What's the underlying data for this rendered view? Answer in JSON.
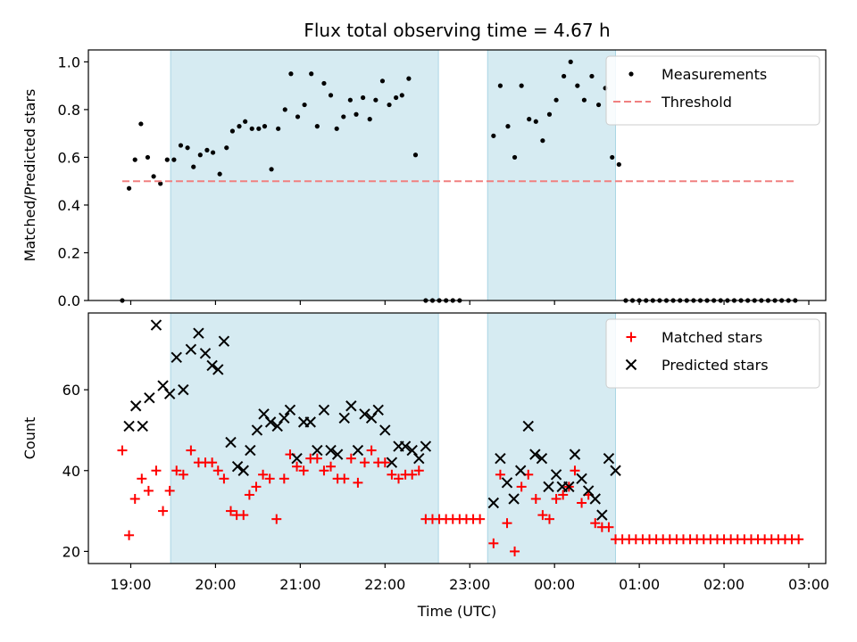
{
  "chart_data": [
    {
      "type": "scatter",
      "title": "Flux total observing time = 4.67 h",
      "ylabel": "Matched/Predicted stars",
      "xlabel": "",
      "x_unit": "hours since 19:00 UTC",
      "xlim": [
        -0.5,
        8.2
      ],
      "ylim": [
        0,
        1.05
      ],
      "yticks": [
        0.0,
        0.2,
        0.4,
        0.6,
        0.8,
        1.0
      ],
      "ytick_labels": [
        "0.0",
        "0.2",
        "0.4",
        "0.6",
        "0.8",
        "1.0"
      ],
      "shaded_spans": [
        [
          0.47,
          3.63
        ],
        [
          4.21,
          5.72
        ]
      ],
      "legend_position": "top-right",
      "series": [
        {
          "name": "Measurements",
          "marker": "dot",
          "color": "#000000",
          "points": [
            [
              -0.1,
              0.0
            ],
            [
              -0.02,
              0.47
            ],
            [
              0.05,
              0.59
            ],
            [
              0.12,
              0.74
            ],
            [
              0.2,
              0.6
            ],
            [
              0.27,
              0.52
            ],
            [
              0.35,
              0.49
            ],
            [
              0.43,
              0.59
            ],
            [
              0.51,
              0.59
            ],
            [
              0.59,
              0.65
            ],
            [
              0.67,
              0.64
            ],
            [
              0.74,
              0.56
            ],
            [
              0.82,
              0.61
            ],
            [
              0.9,
              0.63
            ],
            [
              0.97,
              0.62
            ],
            [
              1.05,
              0.53
            ],
            [
              1.13,
              0.64
            ],
            [
              1.2,
              0.71
            ],
            [
              1.28,
              0.73
            ],
            [
              1.35,
              0.75
            ],
            [
              1.43,
              0.72
            ],
            [
              1.51,
              0.72
            ],
            [
              1.58,
              0.73
            ],
            [
              1.66,
              0.55
            ],
            [
              1.74,
              0.72
            ],
            [
              1.82,
              0.8
            ],
            [
              1.89,
              0.95
            ],
            [
              1.97,
              0.77
            ],
            [
              2.05,
              0.82
            ],
            [
              2.13,
              0.95
            ],
            [
              2.2,
              0.73
            ],
            [
              2.28,
              0.91
            ],
            [
              2.36,
              0.86
            ],
            [
              2.43,
              0.72
            ],
            [
              2.51,
              0.77
            ],
            [
              2.59,
              0.84
            ],
            [
              2.66,
              0.78
            ],
            [
              2.74,
              0.85
            ],
            [
              2.82,
              0.76
            ],
            [
              2.89,
              0.84
            ],
            [
              2.97,
              0.92
            ],
            [
              3.05,
              0.82
            ],
            [
              3.13,
              0.85
            ],
            [
              3.2,
              0.86
            ],
            [
              3.28,
              0.93
            ],
            [
              3.36,
              0.61
            ],
            [
              3.48,
              0.0
            ],
            [
              3.56,
              0.0
            ],
            [
              3.64,
              0.0
            ],
            [
              3.72,
              0.0
            ],
            [
              3.8,
              0.0
            ],
            [
              3.88,
              0.0
            ],
            [
              4.28,
              0.69
            ],
            [
              4.36,
              0.9
            ],
            [
              4.45,
              0.73
            ],
            [
              4.53,
              0.6
            ],
            [
              4.61,
              0.9
            ],
            [
              4.7,
              0.76
            ],
            [
              4.78,
              0.75
            ],
            [
              4.86,
              0.67
            ],
            [
              4.94,
              0.78
            ],
            [
              5.02,
              0.84
            ],
            [
              5.11,
              0.94
            ],
            [
              5.19,
              1.0
            ],
            [
              5.27,
              0.9
            ],
            [
              5.35,
              0.84
            ],
            [
              5.44,
              0.94
            ],
            [
              5.52,
              0.82
            ],
            [
              5.6,
              0.89
            ],
            [
              5.68,
              0.6
            ],
            [
              5.76,
              0.57
            ],
            [
              5.84,
              0.0
            ],
            [
              5.92,
              0.0
            ],
            [
              6.0,
              0.0
            ],
            [
              6.08,
              0.0
            ],
            [
              6.16,
              0.0
            ],
            [
              6.24,
              0.0
            ],
            [
              6.32,
              0.0
            ],
            [
              6.4,
              0.0
            ],
            [
              6.48,
              0.0
            ],
            [
              6.56,
              0.0
            ],
            [
              6.64,
              0.0
            ],
            [
              6.72,
              0.0
            ],
            [
              6.8,
              0.0
            ],
            [
              6.88,
              0.0
            ],
            [
              6.96,
              0.0
            ],
            [
              7.04,
              0.0
            ],
            [
              7.12,
              0.0
            ],
            [
              7.2,
              0.0
            ],
            [
              7.28,
              0.0
            ],
            [
              7.36,
              0.0
            ],
            [
              7.44,
              0.0
            ],
            [
              7.52,
              0.0
            ],
            [
              7.6,
              0.0
            ],
            [
              7.68,
              0.0
            ],
            [
              7.76,
              0.0
            ],
            [
              7.84,
              0.0
            ]
          ]
        },
        {
          "name": "Threshold",
          "type": "line",
          "style": "dashed",
          "color": "#f08080",
          "points": [
            [
              -0.1,
              0.5
            ],
            [
              7.84,
              0.5
            ]
          ]
        }
      ]
    },
    {
      "type": "scatter",
      "title": "",
      "ylabel": "Count",
      "xlabel": "Time (UTC)",
      "x_unit": "hours since 19:00 UTC",
      "xlim": [
        -0.5,
        8.2
      ],
      "ylim": [
        17,
        79
      ],
      "yticks": [
        20,
        40,
        60
      ],
      "ytick_labels": [
        "20",
        "40",
        "60"
      ],
      "xticks": [
        0,
        1,
        2,
        3,
        4,
        5,
        6,
        7,
        8
      ],
      "xtick_labels": [
        "19:00",
        "20:00",
        "21:00",
        "22:00",
        "23:00",
        "00:00",
        "01:00",
        "02:00",
        "03:00"
      ],
      "shaded_spans": [
        [
          0.47,
          3.63
        ],
        [
          4.21,
          5.72
        ]
      ],
      "legend_position": "top-right",
      "series": [
        {
          "name": "Matched stars",
          "marker": "plus",
          "color": "#ff0000",
          "points": [
            [
              -0.1,
              45
            ],
            [
              -0.02,
              24
            ],
            [
              0.05,
              33
            ],
            [
              0.13,
              38
            ],
            [
              0.21,
              35
            ],
            [
              0.3,
              40
            ],
            [
              0.38,
              30
            ],
            [
              0.46,
              35
            ],
            [
              0.54,
              40
            ],
            [
              0.62,
              39
            ],
            [
              0.71,
              45
            ],
            [
              0.8,
              42
            ],
            [
              0.88,
              42
            ],
            [
              0.96,
              42
            ],
            [
              1.03,
              40
            ],
            [
              1.1,
              38
            ],
            [
              1.18,
              30
            ],
            [
              1.25,
              29
            ],
            [
              1.33,
              29
            ],
            [
              1.4,
              34
            ],
            [
              1.48,
              36
            ],
            [
              1.56,
              39
            ],
            [
              1.64,
              38
            ],
            [
              1.72,
              28
            ],
            [
              1.81,
              38
            ],
            [
              1.88,
              44
            ],
            [
              1.96,
              41
            ],
            [
              2.04,
              40
            ],
            [
              2.12,
              43
            ],
            [
              2.2,
              43
            ],
            [
              2.28,
              40
            ],
            [
              2.36,
              41
            ],
            [
              2.44,
              38
            ],
            [
              2.52,
              38
            ],
            [
              2.6,
              43
            ],
            [
              2.68,
              37
            ],
            [
              2.76,
              42
            ],
            [
              2.84,
              45
            ],
            [
              2.92,
              42
            ],
            [
              3.0,
              42
            ],
            [
              3.08,
              39
            ],
            [
              3.16,
              38
            ],
            [
              3.24,
              39
            ],
            [
              3.32,
              39
            ],
            [
              3.4,
              40
            ],
            [
              3.48,
              28
            ],
            [
              3.56,
              28
            ],
            [
              3.64,
              28
            ],
            [
              3.72,
              28
            ],
            [
              3.8,
              28
            ],
            [
              3.88,
              28
            ],
            [
              3.96,
              28
            ],
            [
              4.04,
              28
            ],
            [
              4.12,
              28
            ],
            [
              4.28,
              22
            ],
            [
              4.36,
              39
            ],
            [
              4.44,
              27
            ],
            [
              4.53,
              20
            ],
            [
              4.61,
              36
            ],
            [
              4.69,
              39
            ],
            [
              4.78,
              33
            ],
            [
              4.86,
              29
            ],
            [
              4.94,
              28
            ],
            [
              5.02,
              33
            ],
            [
              5.1,
              34
            ],
            [
              5.17,
              36
            ],
            [
              5.24,
              40
            ],
            [
              5.32,
              32
            ],
            [
              5.4,
              34
            ],
            [
              5.48,
              27
            ],
            [
              5.56,
              26
            ],
            [
              5.64,
              26
            ],
            [
              5.72,
              23
            ],
            [
              5.8,
              23
            ],
            [
              5.88,
              23
            ],
            [
              5.96,
              23
            ],
            [
              6.04,
              23
            ],
            [
              6.12,
              23
            ],
            [
              6.2,
              23
            ],
            [
              6.28,
              23
            ],
            [
              6.36,
              23
            ],
            [
              6.44,
              23
            ],
            [
              6.52,
              23
            ],
            [
              6.6,
              23
            ],
            [
              6.68,
              23
            ],
            [
              6.76,
              23
            ],
            [
              6.84,
              23
            ],
            [
              6.92,
              23
            ],
            [
              7.0,
              23
            ],
            [
              7.08,
              23
            ],
            [
              7.16,
              23
            ],
            [
              7.24,
              23
            ],
            [
              7.32,
              23
            ],
            [
              7.4,
              23
            ],
            [
              7.48,
              23
            ],
            [
              7.56,
              23
            ],
            [
              7.64,
              23
            ],
            [
              7.72,
              23
            ],
            [
              7.8,
              23
            ],
            [
              7.88,
              23
            ]
          ]
        },
        {
          "name": "Predicted stars",
          "marker": "x",
          "color": "#000000",
          "points": [
            [
              -0.02,
              51
            ],
            [
              0.06,
              56
            ],
            [
              0.14,
              51
            ],
            [
              0.22,
              58
            ],
            [
              0.3,
              76
            ],
            [
              0.38,
              61
            ],
            [
              0.46,
              59
            ],
            [
              0.54,
              68
            ],
            [
              0.62,
              60
            ],
            [
              0.71,
              70
            ],
            [
              0.8,
              74
            ],
            [
              0.88,
              69
            ],
            [
              0.96,
              66
            ],
            [
              1.03,
              65
            ],
            [
              1.1,
              72
            ],
            [
              1.18,
              47
            ],
            [
              1.26,
              41
            ],
            [
              1.33,
              40
            ],
            [
              1.41,
              45
            ],
            [
              1.49,
              50
            ],
            [
              1.57,
              54
            ],
            [
              1.65,
              52
            ],
            [
              1.73,
              51
            ],
            [
              1.81,
              53
            ],
            [
              1.88,
              55
            ],
            [
              1.96,
              43
            ],
            [
              2.04,
              52
            ],
            [
              2.12,
              52
            ],
            [
              2.2,
              45
            ],
            [
              2.28,
              55
            ],
            [
              2.36,
              45
            ],
            [
              2.44,
              44
            ],
            [
              2.52,
              53
            ],
            [
              2.6,
              56
            ],
            [
              2.68,
              45
            ],
            [
              2.76,
              54
            ],
            [
              2.84,
              53
            ],
            [
              2.92,
              55
            ],
            [
              3.0,
              50
            ],
            [
              3.08,
              42
            ],
            [
              3.16,
              46
            ],
            [
              3.24,
              46
            ],
            [
              3.32,
              45
            ],
            [
              3.4,
              43
            ],
            [
              3.48,
              46
            ],
            [
              4.28,
              32
            ],
            [
              4.36,
              43
            ],
            [
              4.44,
              37
            ],
            [
              4.52,
              33
            ],
            [
              4.6,
              40
            ],
            [
              4.69,
              51
            ],
            [
              4.77,
              44
            ],
            [
              4.85,
              43
            ],
            [
              4.93,
              36
            ],
            [
              5.02,
              39
            ],
            [
              5.09,
              36
            ],
            [
              5.17,
              36
            ],
            [
              5.24,
              44
            ],
            [
              5.32,
              38
            ],
            [
              5.4,
              35
            ],
            [
              5.48,
              33
            ],
            [
              5.56,
              29
            ],
            [
              5.64,
              43
            ],
            [
              5.72,
              40
            ]
          ]
        }
      ]
    }
  ]
}
